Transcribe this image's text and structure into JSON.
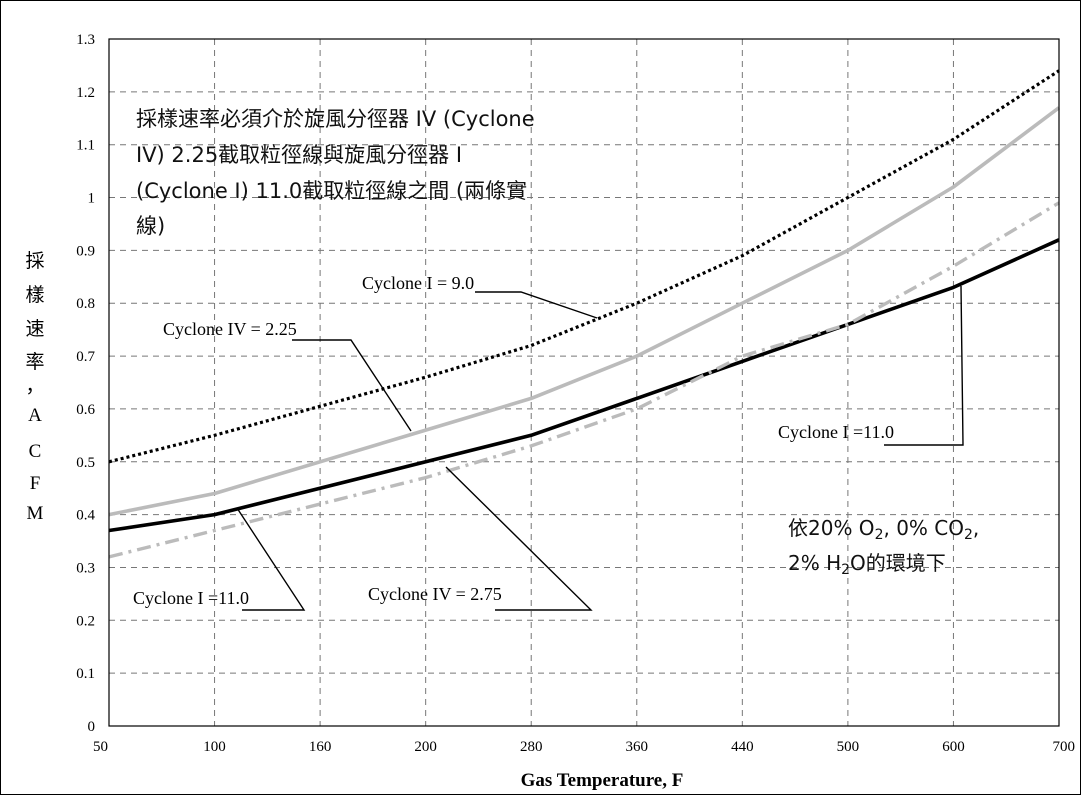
{
  "chart_data": {
    "type": "line",
    "title": "",
    "xlabel": "Gas Temperature, F",
    "ylabel": "採樣速率，ACFM",
    "ylabel_chars": [
      "採",
      "樣",
      "速",
      "率",
      "，",
      "A",
      "C",
      "F",
      "M"
    ],
    "x_categories": [
      "50",
      "100",
      "160",
      "200",
      "280",
      "360",
      "440",
      "500",
      "600",
      "700"
    ],
    "ylim": [
      0,
      1.3
    ],
    "y_ticks": [
      "0",
      "0.1",
      "0.2",
      "0.3",
      "0.4",
      "0.5",
      "0.6",
      "0.7",
      "0.8",
      "0.9",
      "1",
      "1.1",
      "1.2",
      "1.3"
    ],
    "grid": true,
    "series": [
      {
        "name": "Cyclone I = 9.0",
        "style": "dotted",
        "color": "#000000",
        "points": [
          [
            50,
            0.5
          ],
          [
            100,
            0.55
          ],
          [
            200,
            0.66
          ],
          [
            280,
            0.72
          ],
          [
            360,
            0.8
          ],
          [
            440,
            0.89
          ],
          [
            500,
            1.0
          ],
          [
            600,
            1.11
          ],
          [
            700,
            1.24
          ]
        ]
      },
      {
        "name": "Cyclone IV = 2.25",
        "style": "solid",
        "color": "#bbbbbb",
        "points": [
          [
            50,
            0.4
          ],
          [
            100,
            0.44
          ],
          [
            200,
            0.56
          ],
          [
            280,
            0.62
          ],
          [
            360,
            0.7
          ],
          [
            440,
            0.8
          ],
          [
            500,
            0.9
          ],
          [
            600,
            1.02
          ],
          [
            700,
            1.17
          ]
        ]
      },
      {
        "name": "Cyclone I =11.0",
        "style": "solid",
        "color": "#000000",
        "points": [
          [
            50,
            0.37
          ],
          [
            100,
            0.4
          ],
          [
            200,
            0.5
          ],
          [
            280,
            0.55
          ],
          [
            360,
            0.62
          ],
          [
            440,
            0.69
          ],
          [
            500,
            0.76
          ],
          [
            600,
            0.83
          ],
          [
            700,
            0.92
          ]
        ]
      },
      {
        "name": "Cyclone IV = 2.75",
        "style": "dashdot",
        "color": "#bbbbbb",
        "points": [
          [
            50,
            0.32
          ],
          [
            100,
            0.37
          ],
          [
            200,
            0.47
          ],
          [
            280,
            0.53
          ],
          [
            360,
            0.6
          ],
          [
            440,
            0.7
          ],
          [
            500,
            0.76
          ],
          [
            600,
            0.87
          ],
          [
            700,
            0.99
          ]
        ]
      }
    ],
    "annotations": {
      "cyclone_i_9": "Cyclone I = 9.0",
      "cyclone_iv_225": "Cyclone IV = 2.25",
      "cyclone_i_11_right": "Cyclone I =11.0",
      "cyclone_i_11_left": "Cyclone I =11.0",
      "cyclone_iv_275": "Cyclone IV = 2.75"
    },
    "note_top": [
      "採樣速率必須介於旋風分徑器 IV (Cyclone",
      "IV) 2.25截取粒徑線與旋風分徑器 I",
      "(Cyclone I) 11.0截取粒徑線之間 (兩條實",
      "線)"
    ],
    "note_bottom": {
      "line1_a": "依20% O",
      "line1_sub1": "2",
      "line1_b": ", 0% CO",
      "line1_sub2": "2",
      "line1_c": ",",
      "line2_a": "2% H",
      "line2_sub": "2",
      "line2_b": "O的環境下"
    }
  }
}
